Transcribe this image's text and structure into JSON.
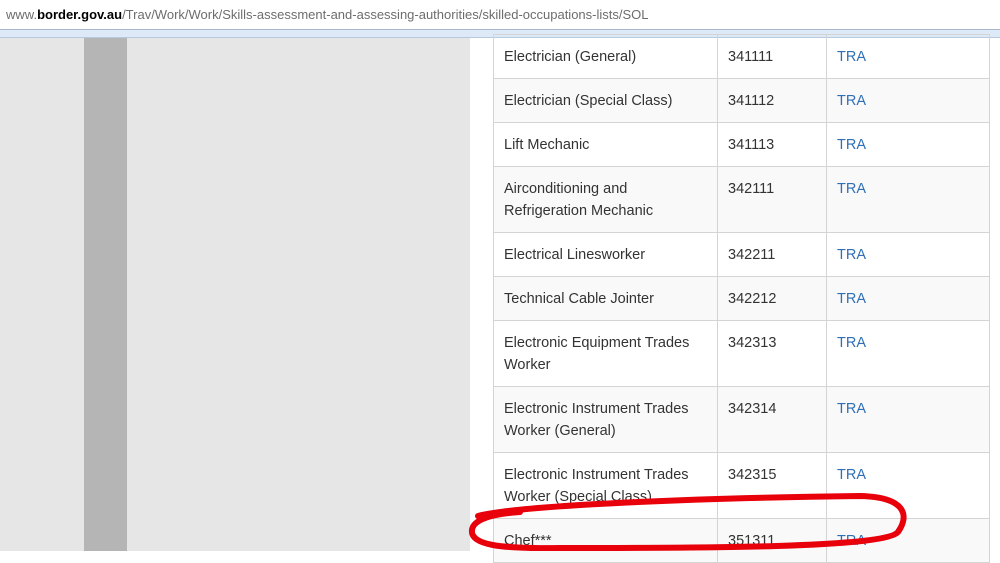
{
  "address_bar": {
    "prefix": "www.",
    "domain": "border.gov.au",
    "path": "/Trav/Work/Work/Skills-assessment-and-assessing-authorities/skilled-occupations-lists/SOL"
  },
  "table": {
    "rows": [
      {
        "occupation": "Electrician (General)",
        "code": "341111",
        "authority": "TRA"
      },
      {
        "occupation": "Electrician (Special Class)",
        "code": "341112",
        "authority": "TRA"
      },
      {
        "occupation": "Lift Mechanic",
        "code": "341113",
        "authority": "TRA"
      },
      {
        "occupation": "Airconditioning and Refrigeration Mechanic",
        "code": "342111",
        "authority": "TRA"
      },
      {
        "occupation": "Electrical Linesworker",
        "code": "342211",
        "authority": "TRA"
      },
      {
        "occupation": "Technical Cable Jointer",
        "code": "342212",
        "authority": "TRA"
      },
      {
        "occupation": "Electronic Equipment Trades Worker",
        "code": "342313",
        "authority": "TRA"
      },
      {
        "occupation": "Electronic Instrument Trades Worker (General)",
        "code": "342314",
        "authority": "TRA"
      },
      {
        "occupation": "Electronic Instrument Trades Worker (Special Class)",
        "code": "342315",
        "authority": "TRA"
      },
      {
        "occupation": "Chef***",
        "code": "351311",
        "authority": "TRA"
      }
    ]
  },
  "annotation": {
    "color": "#e8000b",
    "highlighted_row": "Chef***"
  }
}
